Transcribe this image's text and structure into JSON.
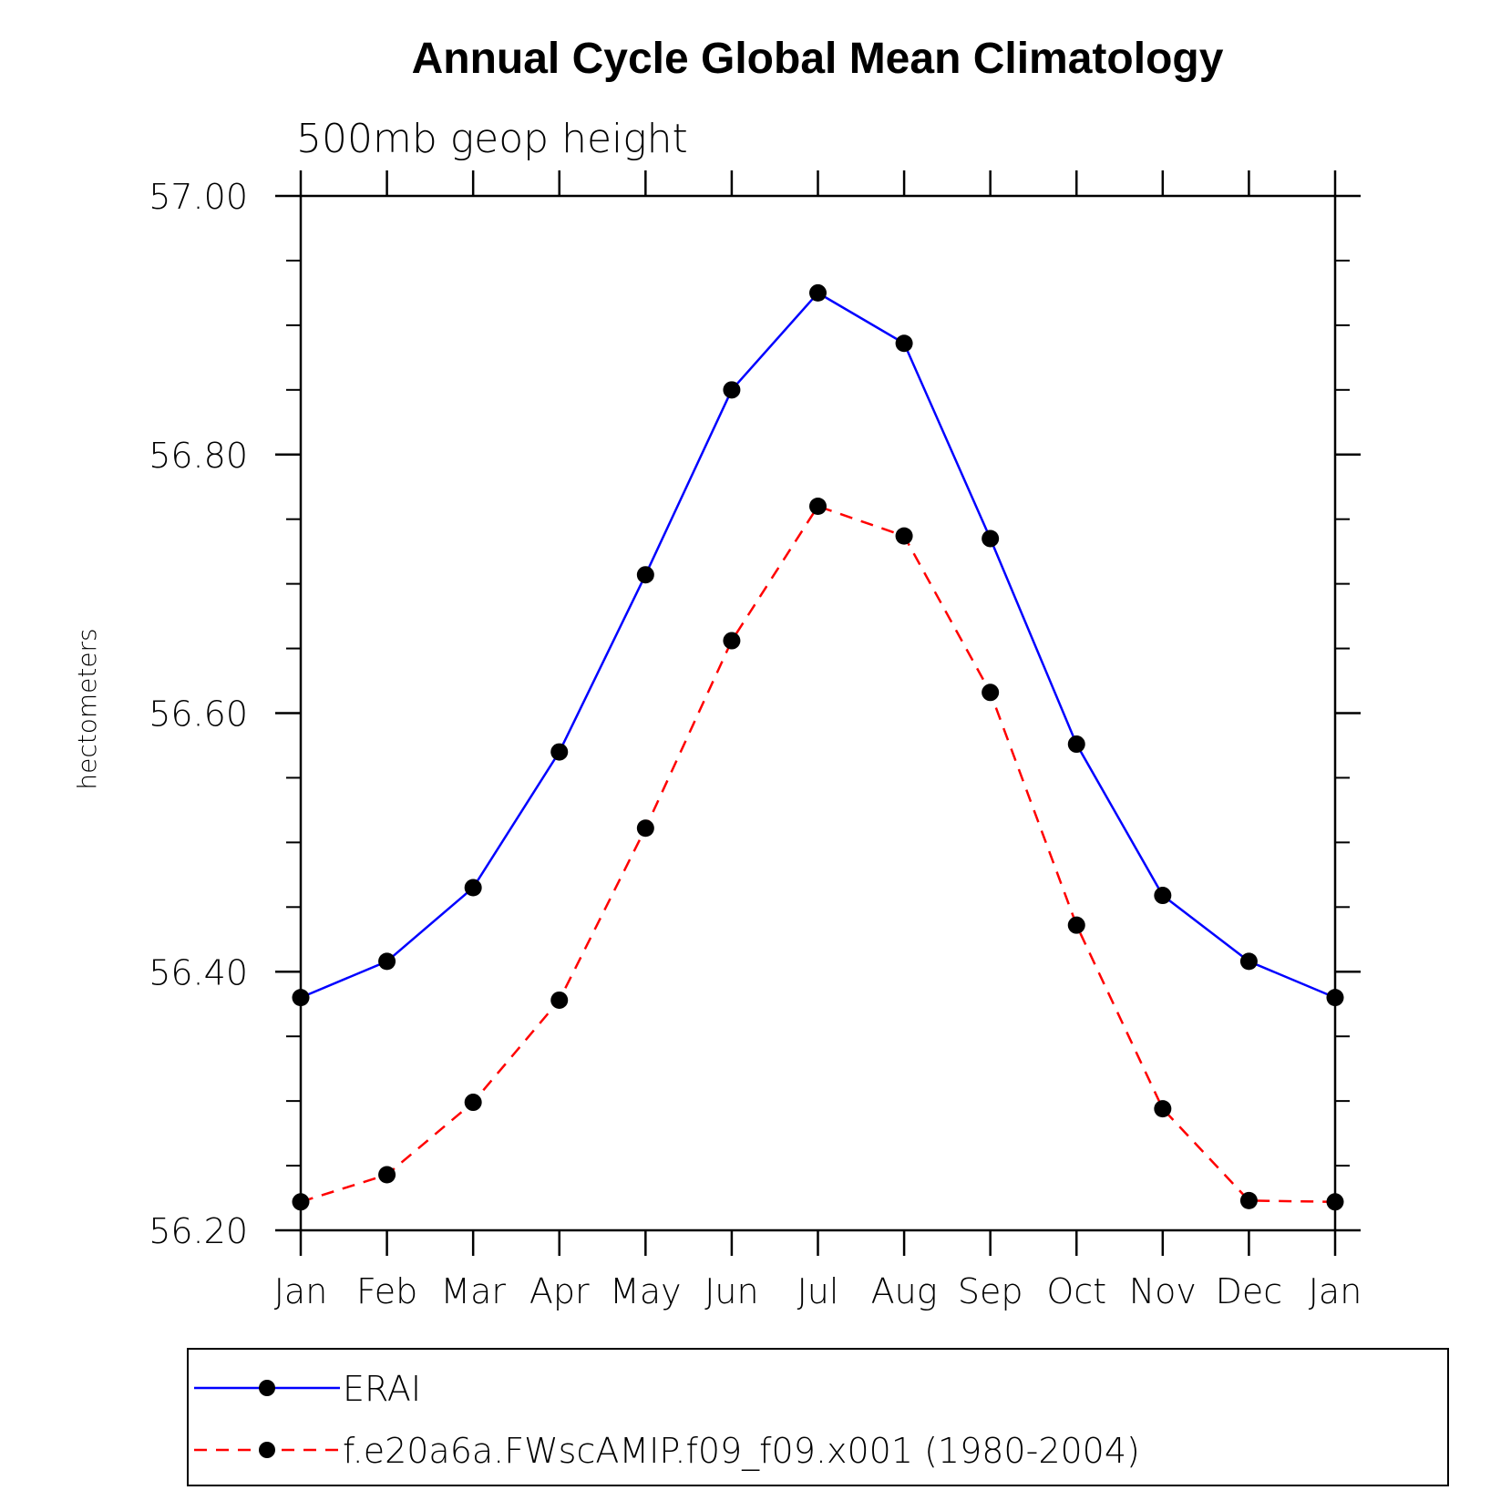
{
  "chart_data": {
    "type": "line",
    "title": "Annual Cycle Global Mean Climatology",
    "subtitle": "500mb geop height",
    "xlabel": "",
    "ylabel": "hectometers",
    "categories": [
      "Jan",
      "Feb",
      "Mar",
      "Apr",
      "May",
      "Jun",
      "Jul",
      "Aug",
      "Sep",
      "Oct",
      "Nov",
      "Dec",
      "Jan"
    ],
    "ylim": [
      56.2,
      57.0
    ],
    "yticks": [
      56.2,
      56.4,
      56.6,
      56.8,
      57.0
    ],
    "ytick_labels": [
      "56.20",
      "56.40",
      "56.60",
      "56.80",
      "57.00"
    ],
    "y_minor_step": 0.05,
    "grid": false,
    "legend_position": "bottom",
    "series": [
      {
        "name": "ERAI",
        "color": "#0000ff",
        "line_style": "solid",
        "marker": "filled-circle",
        "values": [
          56.38,
          56.408,
          56.465,
          56.57,
          56.707,
          56.85,
          56.925,
          56.886,
          56.735,
          56.576,
          56.459,
          56.408,
          56.38
        ]
      },
      {
        "name": "f.e20a6a.FWscAMIP.f09_f09.x001 (1980-2004)",
        "color": "#ff0000",
        "line_style": "dashed",
        "marker": "filled-circle",
        "values": [
          56.222,
          56.243,
          56.299,
          56.378,
          56.511,
          56.656,
          56.76,
          56.737,
          56.616,
          56.436,
          56.294,
          56.223,
          56.222
        ]
      }
    ]
  }
}
